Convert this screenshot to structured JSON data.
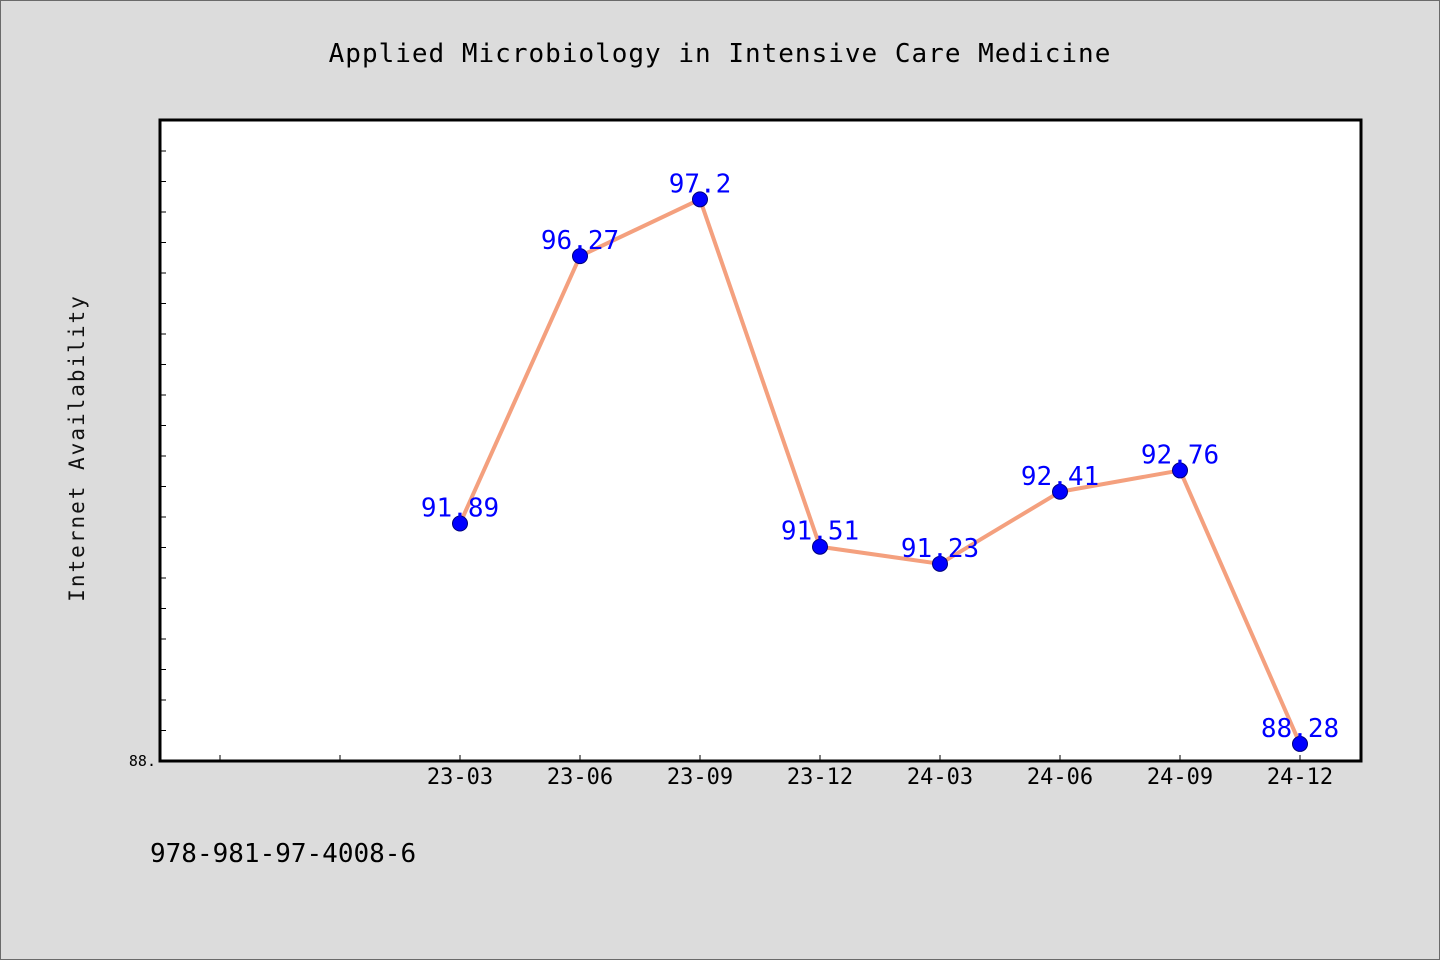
{
  "chart_data": {
    "type": "line",
    "title": "Applied Microbiology in Intensive Care Medicine",
    "xlabel": "",
    "ylabel": "Internet Availability",
    "categories": [
      "23-03",
      "23-06",
      "23-09",
      "23-12",
      "24-03",
      "24-06",
      "24-09",
      "24-12"
    ],
    "series": [
      {
        "values": [
          91.89,
          96.27,
          97.2,
          91.51,
          91.23,
          92.41,
          92.76,
          88.28
        ]
      }
    ],
    "value_labels": [
      "91.89",
      "96.27",
      "97.2",
      "91.51",
      "91.23",
      "92.41",
      "92.76",
      "88.28"
    ],
    "y_tick_label": "88.",
    "ylim": [
      88,
      98.5
    ],
    "grid": false,
    "line_color": "#f4a07e",
    "marker_color": "#0000ff",
    "label_color": "#0000ff"
  },
  "footer": {
    "isbn": "978-981-97-4008-6"
  }
}
